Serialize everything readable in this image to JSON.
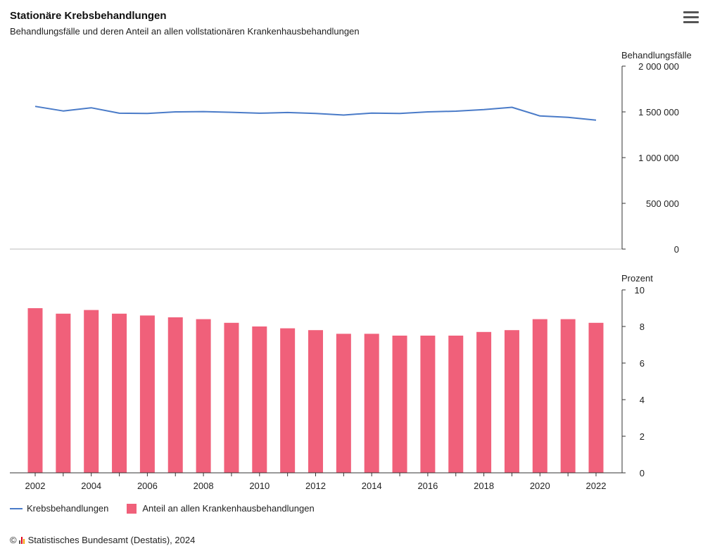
{
  "title": "Stationäre Krebsbehandlungen",
  "subtitle": "Behandlungsfälle und deren Anteil an allen vollstationären Krankenhausbehandlungen",
  "credit": "Statistisches Bundesamt (Destatis), 2024",
  "credit_symbol": "©",
  "colors": {
    "line": "#4a7bc8",
    "bar": "#f0607a",
    "axis": "#333333"
  },
  "chart_data": [
    {
      "type": "line",
      "ylabel": "Behandlungsfälle",
      "ylim": [
        0,
        2000000
      ],
      "yticks": [
        {
          "value": 0,
          "label": "0"
        },
        {
          "value": 500000,
          "label": "500 000"
        },
        {
          "value": 1000000,
          "label": "1 000 000"
        },
        {
          "value": 1500000,
          "label": "1 500 000"
        },
        {
          "value": 2000000,
          "label": "2 000 000"
        }
      ],
      "x": [
        2002,
        2003,
        2004,
        2005,
        2006,
        2007,
        2008,
        2009,
        2010,
        2011,
        2012,
        2013,
        2014,
        2015,
        2016,
        2017,
        2018,
        2019,
        2020,
        2021,
        2022
      ],
      "series": [
        {
          "name": "Krebsbehandlungen",
          "values": [
            1560000,
            1510000,
            1545000,
            1485000,
            1483000,
            1500000,
            1503000,
            1495000,
            1485000,
            1493000,
            1483000,
            1465000,
            1487000,
            1483000,
            1500000,
            1508000,
            1525000,
            1550000,
            1455000,
            1440000,
            1410000
          ]
        }
      ]
    },
    {
      "type": "bar",
      "ylabel": "Prozent",
      "ylim": [
        0,
        10
      ],
      "yticks": [
        {
          "value": 0,
          "label": "0"
        },
        {
          "value": 2,
          "label": "2"
        },
        {
          "value": 4,
          "label": "4"
        },
        {
          "value": 6,
          "label": "6"
        },
        {
          "value": 8,
          "label": "8"
        },
        {
          "value": 10,
          "label": "10"
        }
      ],
      "categories": [
        2002,
        2003,
        2004,
        2005,
        2006,
        2007,
        2008,
        2009,
        2010,
        2011,
        2012,
        2013,
        2014,
        2015,
        2016,
        2017,
        2018,
        2019,
        2020,
        2021,
        2022
      ],
      "series": [
        {
          "name": "Anteil an allen Krankenhausbehandlungen",
          "values": [
            9.0,
            8.7,
            8.9,
            8.7,
            8.6,
            8.5,
            8.4,
            8.2,
            8.0,
            7.9,
            7.8,
            7.6,
            7.6,
            7.5,
            7.5,
            7.5,
            7.7,
            7.8,
            8.4,
            8.4,
            8.2
          ]
        }
      ],
      "xtick_labels": [
        "2002",
        "2004",
        "2006",
        "2008",
        "2010",
        "2012",
        "2014",
        "2016",
        "2018",
        "2020",
        "2022"
      ]
    }
  ],
  "legend": [
    {
      "label": "Krebsbehandlungen",
      "type": "line"
    },
    {
      "label": "Anteil an allen Krankenhausbehandlungen",
      "type": "bar"
    }
  ]
}
